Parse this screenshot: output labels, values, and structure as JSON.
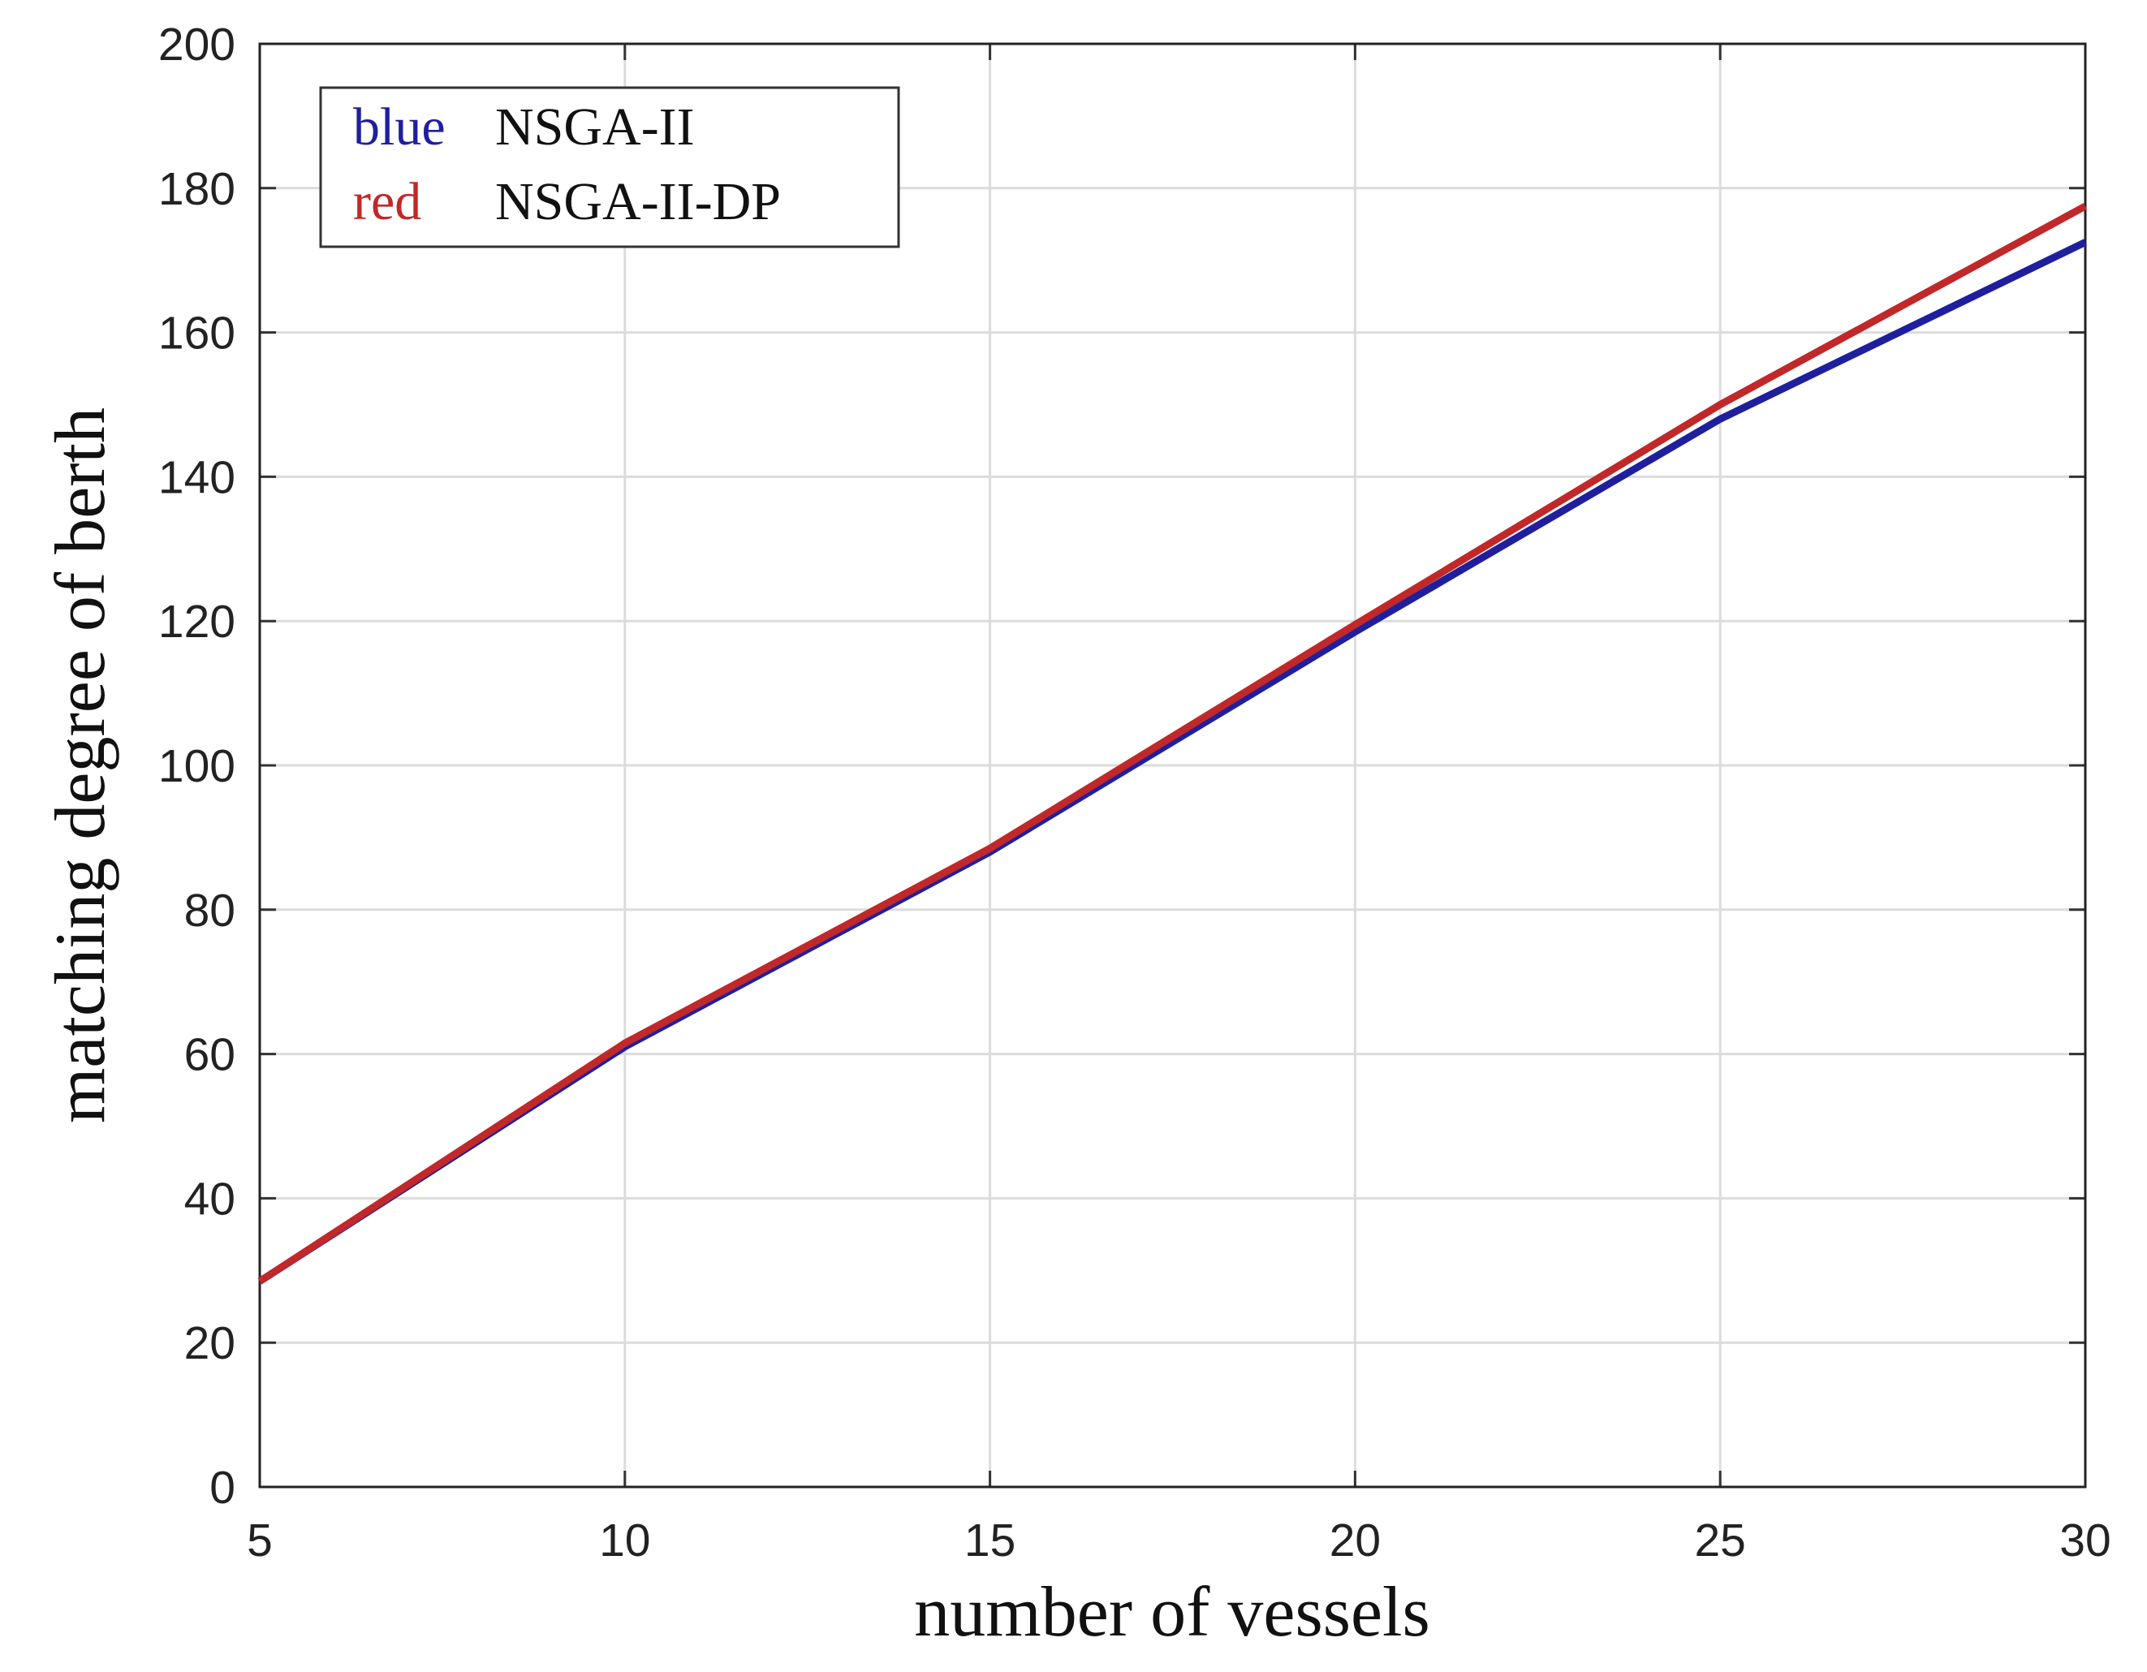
{
  "chart_data": {
    "type": "line",
    "x_label": "number of vessels",
    "y_label": "matching degree of berth",
    "x": [
      5,
      10,
      15,
      20,
      25,
      30
    ],
    "series": [
      {
        "name": "NSGA-II",
        "key": "blue",
        "color": "#1f1f9e",
        "values": [
          28.5,
          61,
          88,
          118.5,
          148,
          172.5
        ]
      },
      {
        "name": "NSGA-II-DP",
        "key": "red",
        "color": "#c0282a",
        "values": [
          28.5,
          61.5,
          88.5,
          119.5,
          150,
          177.5
        ]
      }
    ],
    "xlim": [
      5,
      30
    ],
    "xticks": [
      5,
      10,
      15,
      20,
      25,
      30
    ],
    "ylim": [
      0,
      200
    ],
    "yticks": [
      0,
      20,
      40,
      60,
      80,
      100,
      120,
      140,
      160,
      180,
      200
    ],
    "grid": true,
    "legend": "upper left"
  }
}
